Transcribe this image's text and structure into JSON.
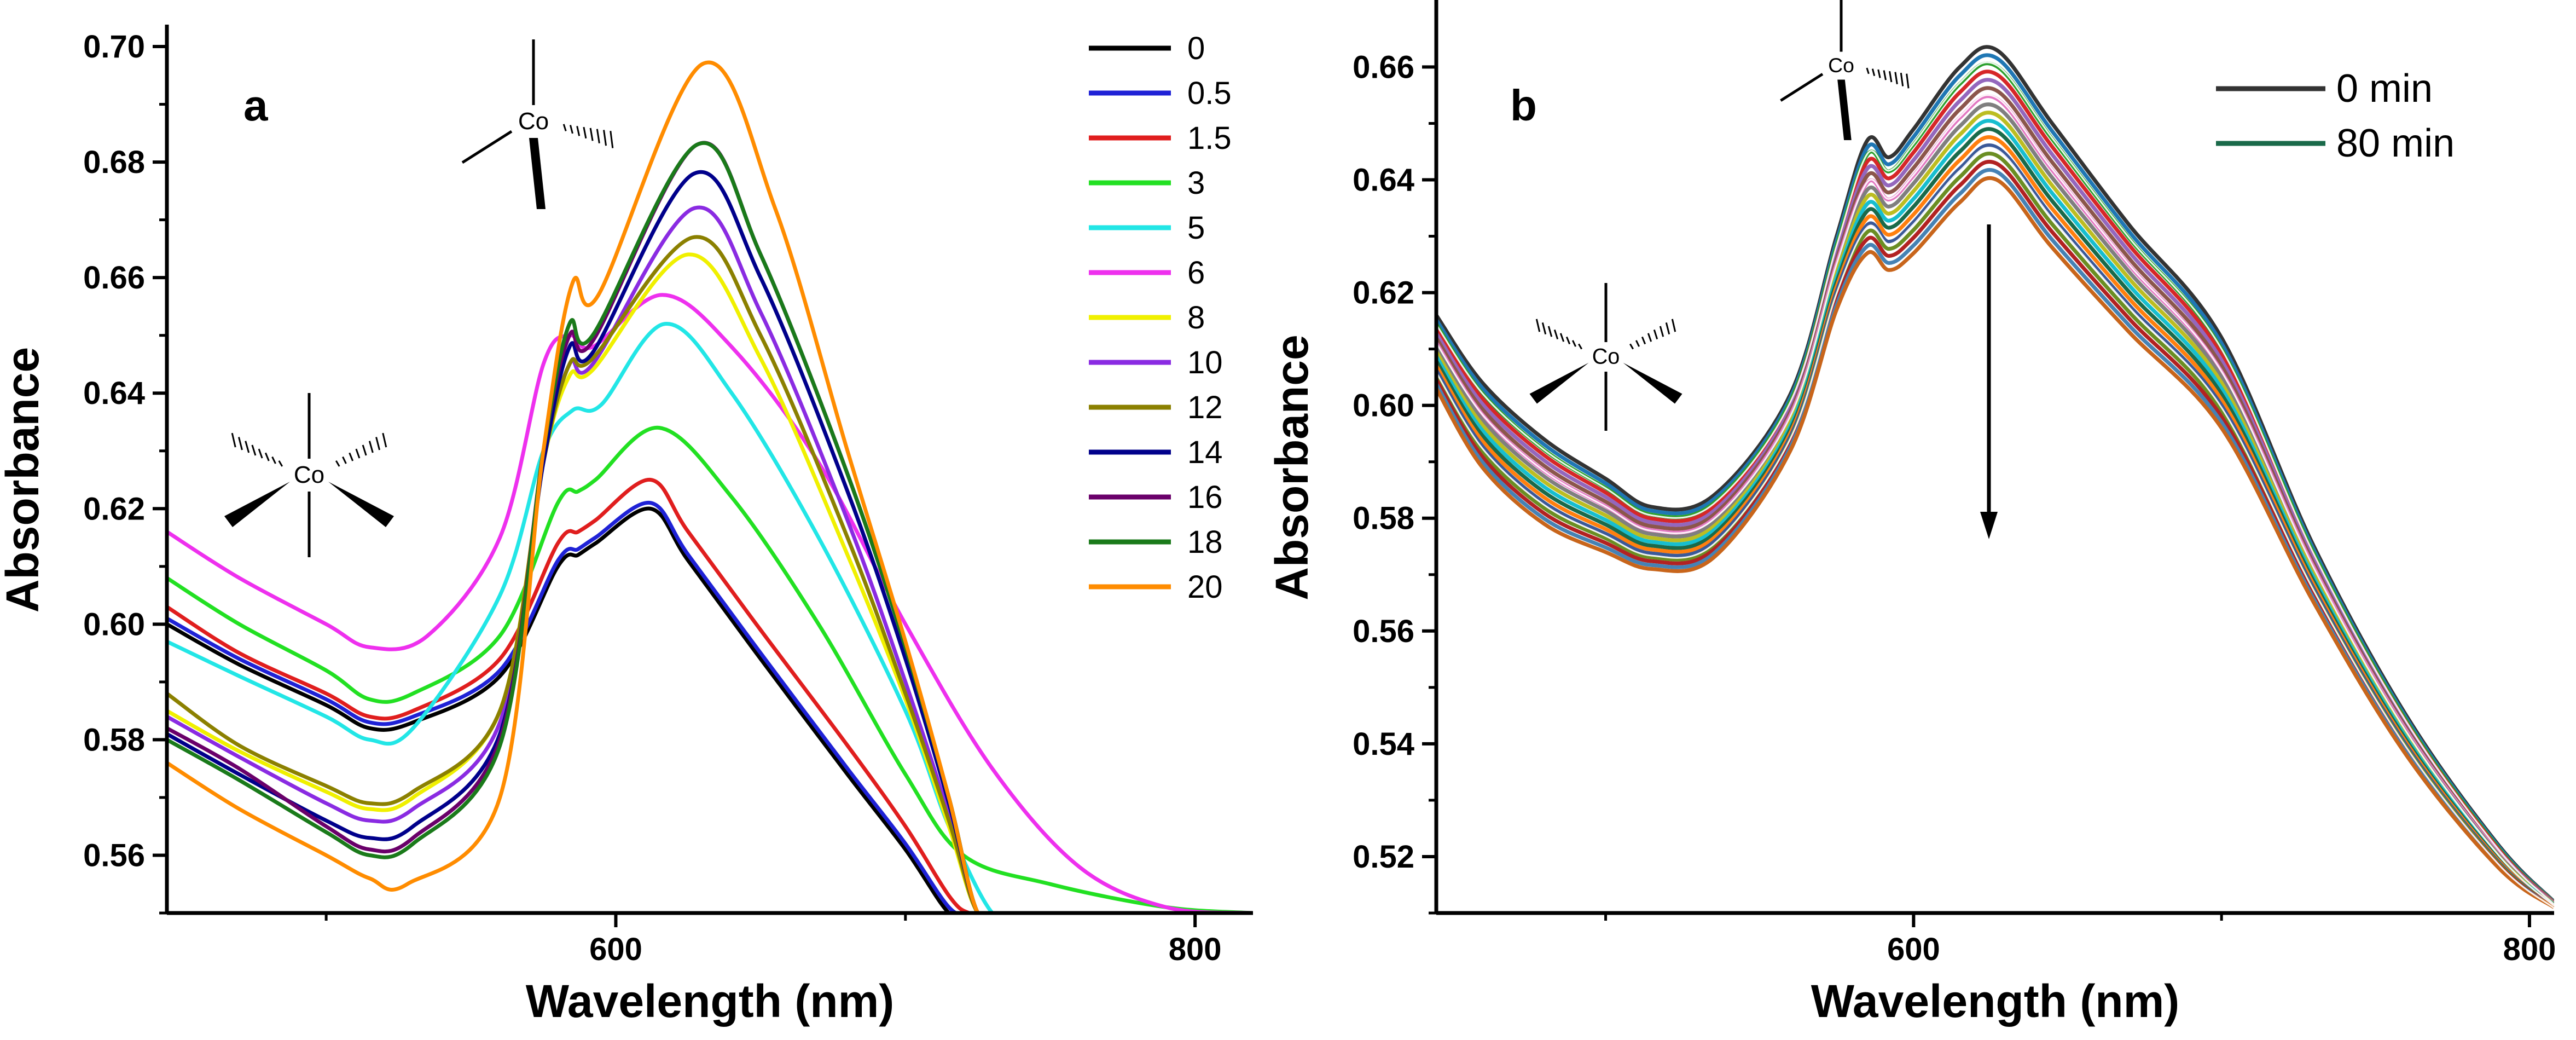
{
  "chart_data": [
    {
      "type": "line",
      "panel_label": "a",
      "xlabel": "Wavelength (nm)",
      "ylabel": "Absorbance",
      "xlim": [
        445,
        820
      ],
      "ylim": [
        0.55,
        0.7
      ],
      "x_ticks": [
        600,
        800
      ],
      "y_ticks": [
        0.56,
        0.58,
        0.6,
        0.62,
        0.64,
        0.66,
        0.68,
        0.7
      ],
      "y_tick_labels": [
        "0.56",
        "0.58",
        "0.60",
        "0.62",
        "0.64",
        "0.66",
        "0.68",
        "0.70"
      ],
      "legend_position": "top-right",
      "annotations": [
        "Co",
        "Co"
      ],
      "series": [
        {
          "name": "0",
          "color": "#000000",
          "x": [
            445,
            470,
            500,
            515,
            530,
            560,
            580,
            587,
            593,
            612,
            625,
            650,
            680,
            700,
            715,
            722,
            730
          ],
          "y": [
            0.6,
            0.593,
            0.586,
            0.582,
            0.583,
            0.591,
            0.61,
            0.612,
            0.614,
            0.62,
            0.611,
            0.594,
            0.574,
            0.561,
            0.55,
            0.55,
            0.55
          ]
        },
        {
          "name": "0.5",
          "color": "#1f22d6",
          "x": [
            445,
            470,
            500,
            515,
            530,
            560,
            580,
            587,
            593,
            612,
            625,
            650,
            680,
            700,
            715,
            722,
            730
          ],
          "y": [
            0.601,
            0.594,
            0.587,
            0.583,
            0.584,
            0.592,
            0.611,
            0.613,
            0.615,
            0.621,
            0.612,
            0.595,
            0.575,
            0.562,
            0.551,
            0.55,
            0.55
          ]
        },
        {
          "name": "1.5",
          "color": "#e01e1e",
          "x": [
            445,
            470,
            500,
            515,
            530,
            560,
            580,
            587,
            593,
            612,
            625,
            650,
            680,
            700,
            715,
            722,
            730
          ],
          "y": [
            0.603,
            0.595,
            0.588,
            0.584,
            0.585,
            0.594,
            0.614,
            0.616,
            0.618,
            0.625,
            0.616,
            0.599,
            0.579,
            0.565,
            0.553,
            0.55,
            0.55
          ]
        },
        {
          "name": "3",
          "color": "#22e022",
          "x": [
            445,
            470,
            500,
            515,
            530,
            560,
            580,
            587,
            593,
            615,
            640,
            670,
            700,
            720,
            750,
            790,
            820
          ],
          "y": [
            0.608,
            0.6,
            0.592,
            0.587,
            0.588,
            0.598,
            0.621,
            0.623,
            0.625,
            0.634,
            0.622,
            0.6,
            0.574,
            0.56,
            0.555,
            0.551,
            0.55
          ]
        },
        {
          "name": "5",
          "color": "#22e6e6",
          "x": [
            445,
            470,
            500,
            515,
            530,
            560,
            575,
            585,
            595,
            617,
            640,
            670,
            700,
            715,
            730,
            740
          ],
          "y": [
            0.597,
            0.591,
            0.584,
            0.58,
            0.582,
            0.605,
            0.63,
            0.637,
            0.638,
            0.652,
            0.64,
            0.615,
            0.585,
            0.565,
            0.55,
            0.55
          ]
        },
        {
          "name": "6",
          "color": "#ee30ee",
          "x": [
            445,
            470,
            500,
            515,
            535,
            560,
            575,
            584,
            592,
            616,
            640,
            670,
            700,
            730,
            760,
            790,
            820
          ],
          "y": [
            0.616,
            0.608,
            0.6,
            0.596,
            0.598,
            0.615,
            0.645,
            0.65,
            0.648,
            0.657,
            0.648,
            0.628,
            0.6,
            0.575,
            0.558,
            0.551,
            0.55
          ]
        },
        {
          "name": "8",
          "color": "#f0f000",
          "x": [
            445,
            470,
            500,
            515,
            530,
            560,
            575,
            584,
            592,
            625,
            650,
            680,
            700,
            715,
            725,
            735
          ],
          "y": [
            0.585,
            0.578,
            0.571,
            0.568,
            0.57,
            0.585,
            0.628,
            0.643,
            0.644,
            0.664,
            0.646,
            0.612,
            0.587,
            0.565,
            0.55,
            0.55
          ]
        },
        {
          "name": "10",
          "color": "#8a2be2",
          "x": [
            445,
            470,
            500,
            515,
            530,
            560,
            575,
            584,
            592,
            627,
            650,
            680,
            700,
            715,
            725,
            735
          ],
          "y": [
            0.584,
            0.577,
            0.569,
            0.566,
            0.568,
            0.583,
            0.628,
            0.645,
            0.645,
            0.672,
            0.654,
            0.618,
            0.59,
            0.567,
            0.55,
            0.55
          ]
        },
        {
          "name": "12",
          "color": "#8b8000",
          "x": [
            445,
            470,
            500,
            515,
            530,
            560,
            575,
            584,
            592,
            627,
            650,
            680,
            700,
            715,
            725,
            735
          ],
          "y": [
            0.588,
            0.579,
            0.572,
            0.569,
            0.571,
            0.585,
            0.628,
            0.645,
            0.646,
            0.667,
            0.65,
            0.615,
            0.588,
            0.566,
            0.55,
            0.55
          ]
        },
        {
          "name": "14",
          "color": "#00008b",
          "x": [
            445,
            470,
            500,
            515,
            530,
            560,
            575,
            584,
            592,
            627,
            650,
            680,
            700,
            715,
            725,
            735
          ],
          "y": [
            0.581,
            0.574,
            0.566,
            0.563,
            0.565,
            0.581,
            0.628,
            0.648,
            0.647,
            0.678,
            0.66,
            0.623,
            0.594,
            0.569,
            0.55,
            0.55
          ]
        },
        {
          "name": "16",
          "color": "#6a006a",
          "x": [
            445,
            470,
            500,
            515,
            530,
            560,
            575,
            584,
            592,
            628,
            650,
            680,
            700,
            715,
            725,
            735
          ],
          "y": [
            0.582,
            0.575,
            0.565,
            0.561,
            0.563,
            0.58,
            0.63,
            0.65,
            0.649,
            0.683,
            0.664,
            0.626,
            0.596,
            0.57,
            0.55,
            0.55
          ]
        },
        {
          "name": "18",
          "color": "#1a7a1a",
          "x": [
            445,
            470,
            500,
            515,
            530,
            560,
            575,
            584,
            592,
            628,
            650,
            680,
            700,
            715,
            725,
            735
          ],
          "y": [
            0.58,
            0.573,
            0.564,
            0.56,
            0.562,
            0.579,
            0.63,
            0.652,
            0.65,
            0.683,
            0.664,
            0.626,
            0.596,
            0.57,
            0.55,
            0.55
          ]
        },
        {
          "name": "20",
          "color": "#ff8c00",
          "x": [
            445,
            470,
            500,
            515,
            528,
            560,
            575,
            585,
            594,
            630,
            655,
            680,
            700,
            715,
            725,
            735
          ],
          "y": [
            0.576,
            0.568,
            0.56,
            0.556,
            0.555,
            0.57,
            0.63,
            0.659,
            0.657,
            0.697,
            0.672,
            0.63,
            0.597,
            0.57,
            0.55,
            0.55
          ]
        }
      ]
    },
    {
      "type": "line",
      "panel_label": "b",
      "xlabel": "Wavelength (nm)",
      "ylabel": "Absorbance",
      "xlim": [
        445,
        808
      ],
      "ylim": [
        0.51,
        0.668
      ],
      "x_ticks": [
        600,
        800
      ],
      "y_ticks": [
        0.52,
        0.54,
        0.56,
        0.58,
        0.6,
        0.62,
        0.64,
        0.66
      ],
      "y_tick_labels": [
        "0.52",
        "0.54",
        "0.56",
        "0.58",
        "0.60",
        "0.62",
        "0.64",
        "0.66"
      ],
      "legend_position": "top-right",
      "annotations": [
        "Co",
        "Co"
      ],
      "curve_count": 17,
      "start_color": "#333333",
      "end_color": "#1a6a4a",
      "band_colors": [
        "#333333",
        "#1f77b4",
        "#2ca02c",
        "#d62728",
        "#9467bd",
        "#8c564b",
        "#e377c2",
        "#7f7f7f",
        "#bcbd22",
        "#17becf",
        "#1a6a4a",
        "#ff7f0e",
        "#3b5998",
        "#6b8e23",
        "#b22222",
        "#4682b4",
        "#c8651b"
      ],
      "series": [
        {
          "name": "0 min",
          "color": "#333333",
          "x": [
            445,
            460,
            480,
            500,
            515,
            535,
            560,
            575,
            585,
            592,
            600,
            615,
            627,
            645,
            670,
            700,
            730,
            760,
            790,
            808
          ],
          "y": [
            0.616,
            0.604,
            0.594,
            0.587,
            0.582,
            0.584,
            0.602,
            0.63,
            0.647,
            0.644,
            0.649,
            0.66,
            0.663,
            0.65,
            0.632,
            0.612,
            0.575,
            0.545,
            0.522,
            0.512
          ]
        },
        {
          "name": "80 min",
          "color": "#1a6a4a",
          "x": [
            445,
            460,
            480,
            500,
            515,
            535,
            560,
            575,
            585,
            592,
            600,
            615,
            627,
            645,
            670,
            700,
            730,
            760,
            790,
            808
          ],
          "y": [
            0.603,
            0.589,
            0.579,
            0.574,
            0.571,
            0.573,
            0.592,
            0.617,
            0.627,
            0.624,
            0.627,
            0.636,
            0.64,
            0.628,
            0.613,
            0.596,
            0.565,
            0.538,
            0.518,
            0.511
          ]
        }
      ]
    }
  ]
}
